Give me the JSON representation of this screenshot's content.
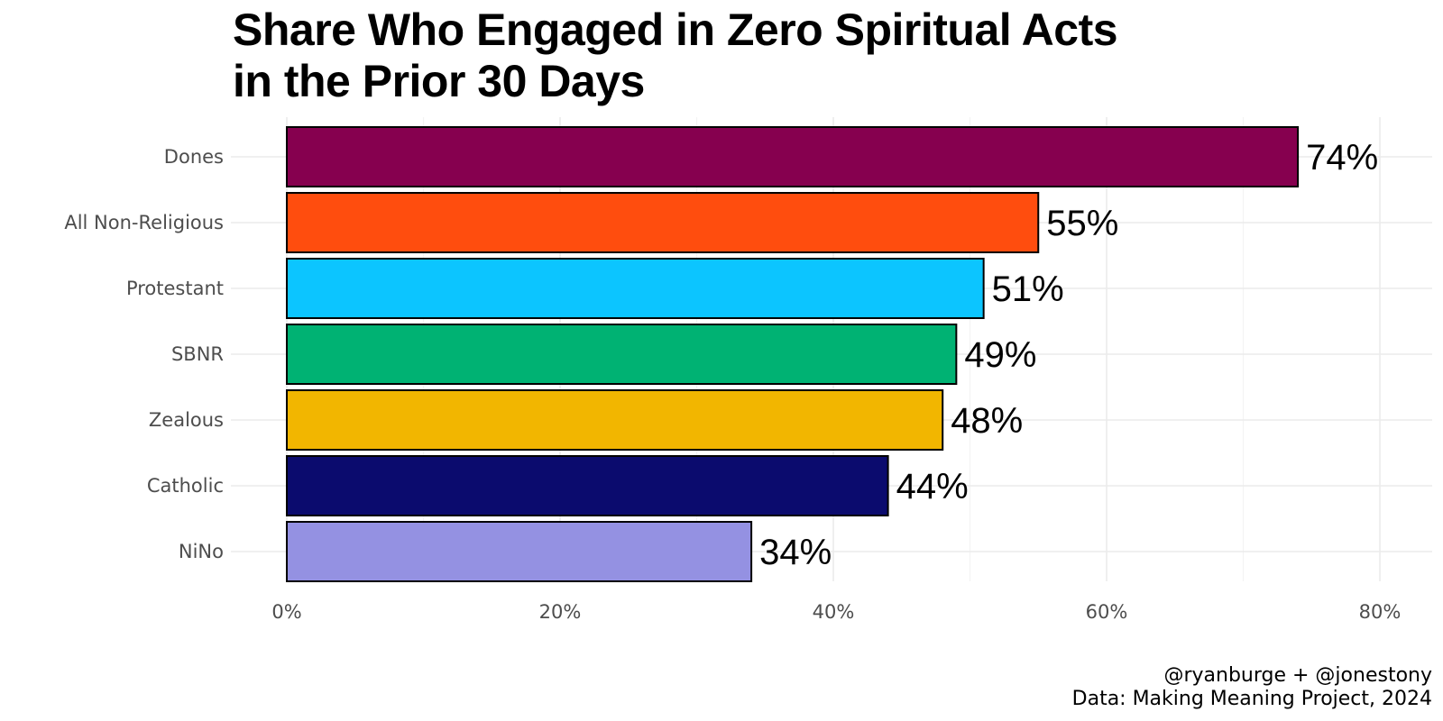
{
  "chart_data": {
    "type": "bar",
    "orientation": "horizontal",
    "title": [
      "Share Who Engaged in Zero Spiritual Acts",
      "in the Prior 30 Days"
    ],
    "categories": [
      "Dones",
      "All Non-Religious",
      "Protestant",
      "SBNR",
      "Zealous",
      "Catholic",
      "NiNo"
    ],
    "values": [
      74,
      55,
      51,
      49,
      48,
      44,
      34
    ],
    "value_labels": [
      "74%",
      "55%",
      "51%",
      "49%",
      "48%",
      "44%",
      "34%"
    ],
    "colors": [
      "#86004F",
      "#FF4D0E",
      "#0CC5FF",
      "#00B273",
      "#F2B600",
      "#0B0B6E",
      "#9491E2"
    ],
    "xlim": [
      0,
      80
    ],
    "x_ticks": [
      0,
      20,
      40,
      60,
      80
    ],
    "x_tick_labels": [
      "0%",
      "20%",
      "40%",
      "60%",
      "80%"
    ],
    "xlabel": "",
    "ylabel": "",
    "grid": true,
    "caption": [
      "@ryanburge + @jonestony",
      "Data: Making Meaning Project, 2024"
    ]
  }
}
